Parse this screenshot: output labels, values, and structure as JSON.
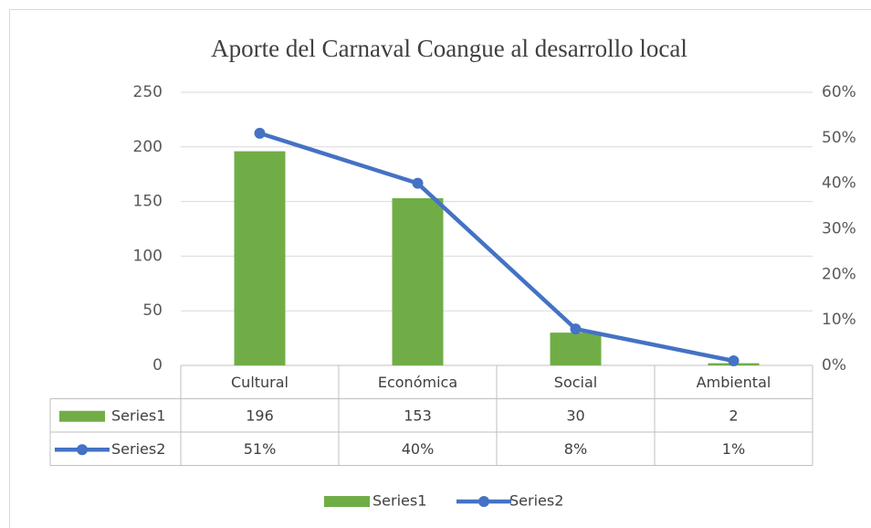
{
  "chart_data": {
    "type": "bar",
    "title": "Aporte del Carnaval Coangue al desarrollo local",
    "categories": [
      "Cultural",
      "Económica",
      "Social",
      "Ambiental"
    ],
    "series": [
      {
        "name": "Series1",
        "type": "bar",
        "color": "#70ad47",
        "values": [
          196,
          153,
          30,
          2
        ]
      },
      {
        "name": "Series2",
        "type": "line",
        "axis": "y2",
        "color": "#4472c4",
        "values": [
          51,
          40,
          8,
          1
        ],
        "value_labels": [
          "51%",
          "40%",
          "8%",
          "1%"
        ]
      }
    ],
    "ylim": [
      0,
      250
    ],
    "yticks": [
      0,
      50,
      100,
      150,
      200,
      250
    ],
    "y2lim": [
      0,
      60
    ],
    "y2ticks": [
      {
        "value": 0,
        "label": "0%"
      },
      {
        "value": 10,
        "label": "10%"
      },
      {
        "value": 20,
        "label": "20%"
      },
      {
        "value": 30,
        "label": "30%"
      },
      {
        "value": 40,
        "label": "40%"
      },
      {
        "value": 50,
        "label": "50%"
      },
      {
        "value": 60,
        "label": "60%"
      }
    ],
    "grid": true,
    "data_table": true,
    "legend": "bottom"
  }
}
